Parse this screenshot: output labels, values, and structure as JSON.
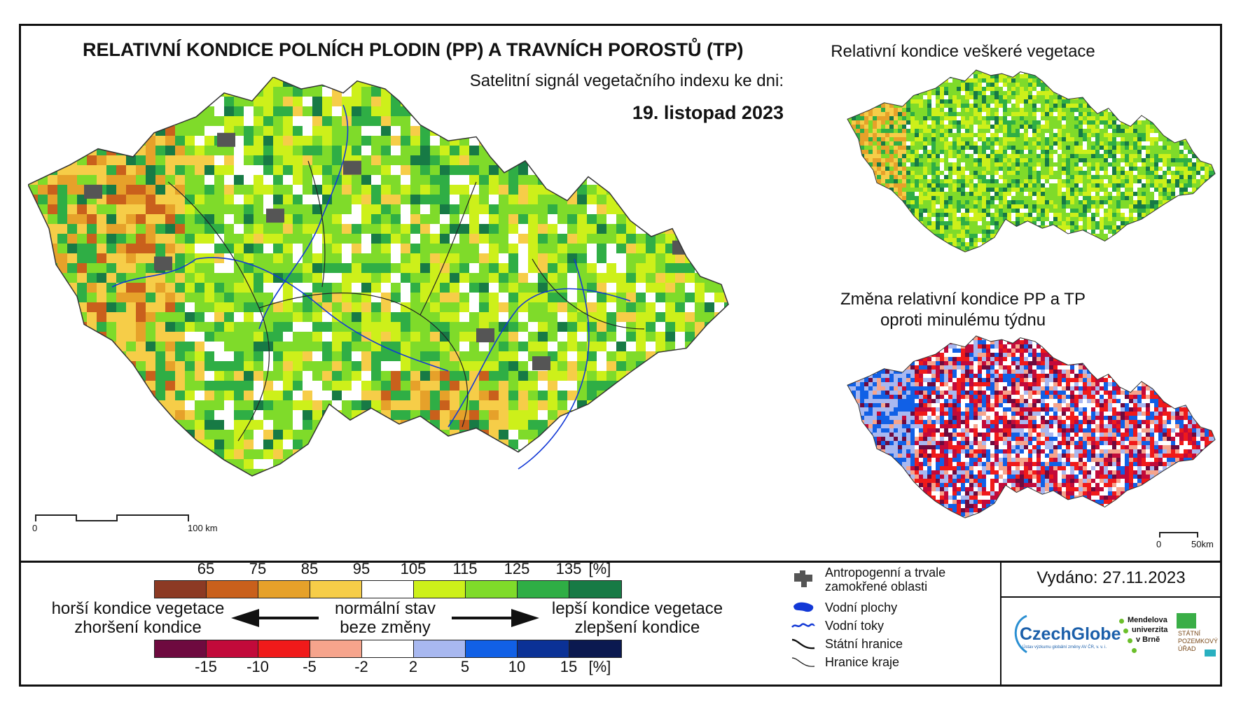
{
  "main": {
    "title": "RELATIVNÍ KONDICE POLNÍCH PLODIN (PP) A TRAVNÍCH POROSTŮ (TP)",
    "subtitle": "Satelitní signál vegetačního indexu ke dni:",
    "date": "19. listopad 2023",
    "scale_zero": "0",
    "scale_end": "100 km"
  },
  "right_top": {
    "title": "Relativní kondice veškeré vegetace"
  },
  "right_bottom": {
    "title_line1": "Změna relativní kondice PP a TP",
    "title_line2": "oproti minulému týdnu",
    "scale_zero": "0",
    "scale_end": "50km"
  },
  "legend": {
    "condition_ticks": [
      "65",
      "75",
      "85",
      "95",
      "105",
      "115",
      "125",
      "135",
      "[%]"
    ],
    "condition_colors": [
      "#8c3a24",
      "#c9601c",
      "#e6a12a",
      "#f6cd48",
      "#ffffff",
      "#cdf01a",
      "#7fdb2a",
      "#2fae45",
      "#177a45"
    ],
    "change_ticks": [
      "-15",
      "-10",
      "-5",
      "-2",
      "2",
      "5",
      "10",
      "15",
      "[%]"
    ],
    "change_colors": [
      "#6e0a3f",
      "#c20a3a",
      "#f01a1a",
      "#f6a48c",
      "#ffffff",
      "#a8b8f0",
      "#1160e6",
      "#0b3196",
      "#0b1950"
    ],
    "worse_line1": "horší kondice vegetace",
    "worse_line2": "zhoršení kondice",
    "normal_line1": "normální stav",
    "normal_line2": "beze změny",
    "better_line1": "lepší kondice vegetace",
    "better_line2": "zlepšení kondice"
  },
  "symbols": {
    "anthropogenic_line1": "Antropogenní a trvale",
    "anthropogenic_line2": "zamokřené oblasti",
    "water_bodies": "Vodní plochy",
    "water_streams": "Vodní toky",
    "state_border": "Státní hranice",
    "region_border": "Hranice kraje"
  },
  "issued": "Vydáno: 27.11.2023",
  "logos": {
    "czechglobe": "CzechGlobe",
    "czechglobe_sub": "Ústav výzkumu globální změny AV ČR, v. v. i.",
    "mendel_line1": "Mendelova",
    "mendel_line2": "univerzita",
    "mendel_line3": "v Brně",
    "spu_line1": "STÁTNÍ",
    "spu_line2": "POZEMKOVÝ",
    "spu_line3": "ÚŘAD"
  }
}
